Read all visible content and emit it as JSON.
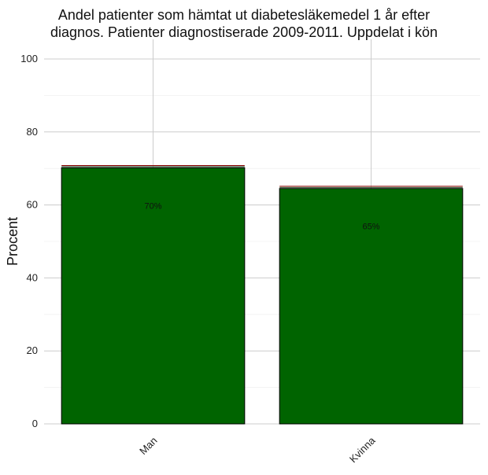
{
  "chart_data": {
    "type": "bar",
    "title": "Andel patienter som hämtat ut diabetesläkemedel 1 år efter",
    "subtitle": "diagnos. Patienter diagnostiserade 2009-2011. Uppdelat i kön",
    "xlabel": "",
    "ylabel": "Procent",
    "categories": [
      "Man",
      "Kvinna"
    ],
    "values": [
      70.2,
      64.5
    ],
    "upper_bounds": [
      70.8,
      65.1
    ],
    "data_labels": [
      "70%",
      "65%"
    ],
    "yticks": [
      "0",
      "20",
      "40",
      "60",
      "80",
      "100"
    ],
    "ylim": [
      0,
      100
    ],
    "grid": true,
    "colors": {
      "bar": "#006400",
      "bar_border": "#000000",
      "bound_line": "#8b0000",
      "grid_major": "#cccccc",
      "grid_minor": "#ececec"
    }
  }
}
